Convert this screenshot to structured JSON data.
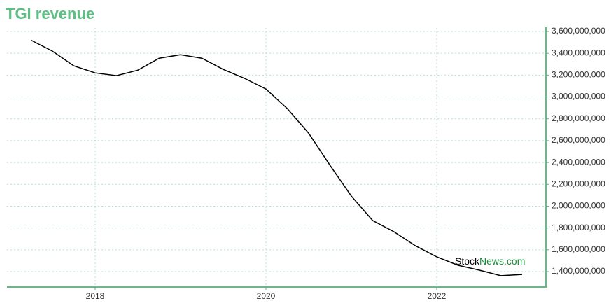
{
  "chart_data": {
    "type": "line",
    "title": "TGI revenue",
    "x": [
      2017.25,
      2017.5,
      2017.75,
      2018,
      2018.25,
      2018.5,
      2018.75,
      2019,
      2019.25,
      2019.5,
      2019.75,
      2020,
      2020.25,
      2020.5,
      2020.75,
      2021,
      2021.25,
      2021.5,
      2021.75,
      2022,
      2022.25,
      2022.5,
      2022.75,
      2023
    ],
    "series": [
      {
        "name": "TGI revenue",
        "color": "#000000",
        "values": [
          3520000000,
          3420000000,
          3285000000,
          3220000000,
          3195000000,
          3245000000,
          3355000000,
          3387000000,
          3355000000,
          3252000000,
          3170000000,
          3073000000,
          2894000000,
          2669000000,
          2374000000,
          2092000000,
          1868000000,
          1765000000,
          1637000000,
          1535000000,
          1458000000,
          1413000000,
          1362000000,
          1374000000
        ]
      }
    ],
    "xlim": [
      2016.967,
      2023.279
    ],
    "xticks": [
      2018,
      2020,
      2022
    ],
    "ylim": [
      1259000000,
      3632000000
    ],
    "yticks": [
      {
        "value": 1400000000,
        "label": "1,400,000,000"
      },
      {
        "value": 1600000000,
        "label": "1,600,000,000"
      },
      {
        "value": 1800000000,
        "label": "1,800,000,000"
      },
      {
        "value": 2000000000,
        "label": "2,000,000,000"
      },
      {
        "value": 2200000000,
        "label": "2,200,000,000"
      },
      {
        "value": 2400000000,
        "label": "2,400,000,000"
      },
      {
        "value": 2600000000,
        "label": "2,600,000,000"
      },
      {
        "value": 2800000000,
        "label": "2,800,000,000"
      },
      {
        "value": 3000000000,
        "label": "3,000,000,000"
      },
      {
        "value": 3200000000,
        "label": "3,200,000,000"
      },
      {
        "value": 3400000000,
        "label": "3,400,000,000"
      },
      {
        "value": 3600000000,
        "label": "3,600,000,000"
      }
    ],
    "grid": true,
    "watermark": [
      "Stock",
      "News.com"
    ]
  }
}
